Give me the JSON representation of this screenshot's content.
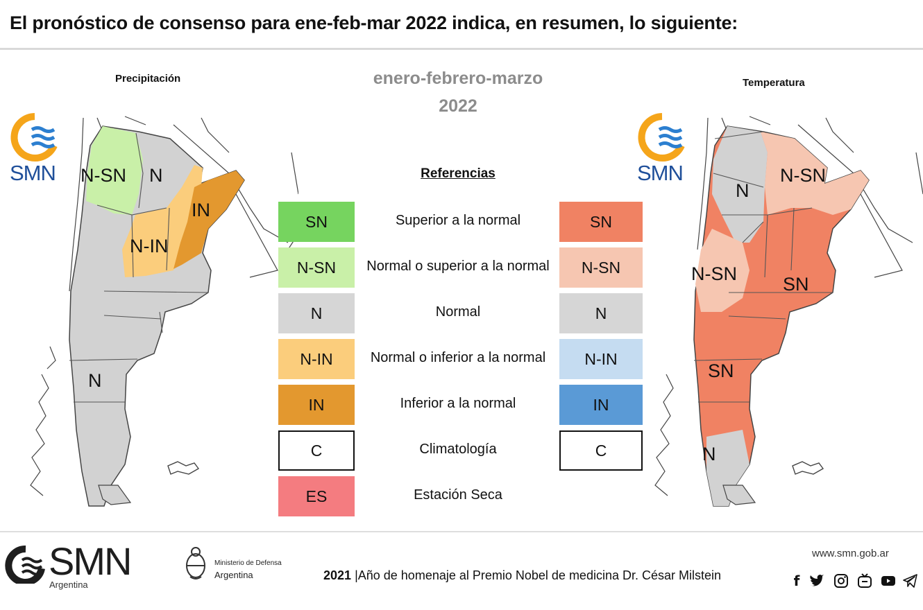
{
  "header": {
    "title": "El pronóstico de consenso para  ene-feb-mar 2022 indica, en resumen, lo siguiente:"
  },
  "season": {
    "line1": "enero-febrero-marzo",
    "line2": "2022"
  },
  "precipitation": {
    "title": "Precipitación",
    "logo_text": "SMN",
    "regions": [
      "N-SN",
      "N",
      "IN",
      "N-IN",
      "N"
    ]
  },
  "temperature": {
    "title": "Temperatura",
    "logo_text": "SMN",
    "regions": [
      "N",
      "N-SN",
      "N-SN",
      "SN",
      "SN",
      "N"
    ]
  },
  "legend": {
    "title": "Referencias",
    "rows": [
      {
        "code": "SN",
        "label": "Superior a la normal",
        "precip_color": "#76d45f",
        "temp_code": "SN",
        "temp_color": "#f08263"
      },
      {
        "code": "N-SN",
        "label": "Normal o superior a la normal",
        "precip_color": "#c9f0a8",
        "temp_code": "N-SN",
        "temp_color": "#f6c6b1"
      },
      {
        "code": "N",
        "label": "Normal",
        "precip_color": "#d6d6d6",
        "temp_code": "N",
        "temp_color": "#d6d6d6"
      },
      {
        "code": "N-IN",
        "label": "Normal o inferior a la normal",
        "precip_color": "#fbcd7c",
        "temp_code": "N-IN",
        "temp_color": "#c5dcf1"
      },
      {
        "code": "IN",
        "label": "Inferior a la normal",
        "precip_color": "#e3982f",
        "temp_code": "IN",
        "temp_color": "#5a9ad6"
      },
      {
        "code": "C",
        "label": "Climatología",
        "precip_color": "#ffffff",
        "temp_code": "C",
        "temp_color": "#ffffff"
      },
      {
        "code": "ES",
        "label": "Estación Seca",
        "precip_color": "#f47c80"
      }
    ]
  },
  "map_colors": {
    "normal": "#d2d2d2",
    "precip_nsn": "#c9f0a8",
    "precip_nin": "#fbcd7c",
    "precip_in": "#e3982f",
    "temp_sn": "#f08263",
    "temp_nsn": "#f6c6b1",
    "border": "#555555"
  },
  "footer": {
    "logo_text": "SMN",
    "logo_sub": "Argentina",
    "ministry_line1": "Ministerio de Defensa",
    "ministry_line2": "Argentina",
    "year": "2021",
    "separator": "|",
    "tagline": "Año de homenaje al Premio Nobel de medicina Dr. César Milstein",
    "url": "www.smn.gob.ar",
    "social_icons": [
      "facebook-icon",
      "twitter-icon",
      "instagram-icon",
      "tv-icon",
      "youtube-icon",
      "telegram-icon"
    ]
  }
}
